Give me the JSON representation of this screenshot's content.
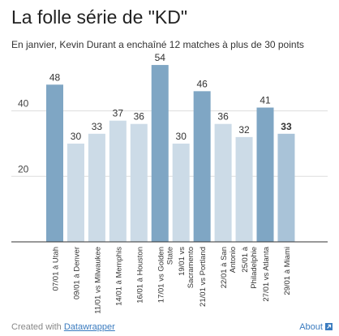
{
  "header": {
    "title": "La folle série de \"KD\"",
    "subtitle": "En janvier, Kevin Durant a enchaîné 12 matches à plus de 30 points"
  },
  "footer": {
    "created_with": "Created with",
    "created_link": "Datawrapper",
    "about": "About",
    "about_icon": "arrow-up-right-icon"
  },
  "colors": {
    "highlight": "#7fa6c4",
    "normal": "#ccdbe7",
    "last": "#a9c3d8",
    "grid": "#dddddd",
    "axis": "#333333"
  },
  "chart_data": {
    "type": "bar",
    "categories": [
      "07/01 à Utah",
      "09/01 à Denver",
      "11/01 vs Milwaukee",
      "14/01 à Memphis",
      "16/01 à Houston",
      "17/01 vs Golden State",
      "19/01 vs Sacramento",
      "21/01 vs Portland",
      "22/01 à San Antonio",
      "25/01 à Philadelphie",
      "27/01 vs Atlanta",
      "29/01 à Miami"
    ],
    "values": [
      48,
      30,
      33,
      37,
      36,
      54,
      30,
      46,
      36,
      32,
      41,
      33
    ],
    "highlight": [
      true,
      false,
      false,
      false,
      false,
      true,
      false,
      true,
      false,
      false,
      true,
      false
    ],
    "last_emphasis": true,
    "title": "La folle série de \"KD\"",
    "subtitle": "En janvier, Kevin Durant a enchaîné 12 matches à plus de 30 points",
    "xlabel": "",
    "ylabel": "",
    "ylim": [
      0,
      56
    ],
    "yticks": [
      20,
      40
    ],
    "grid": true,
    "data_labels": true
  }
}
